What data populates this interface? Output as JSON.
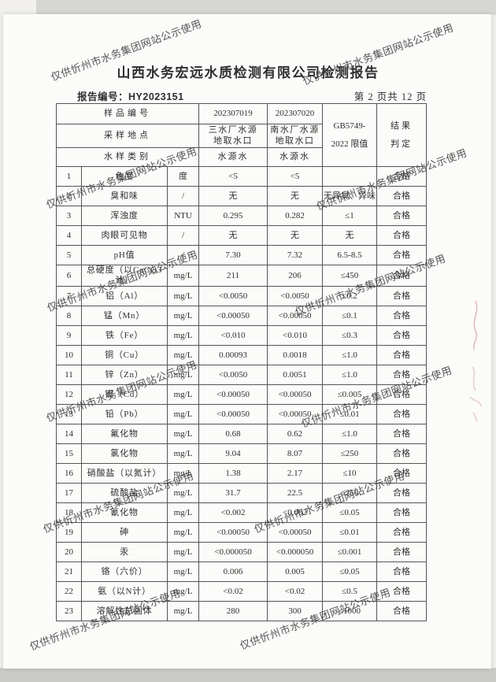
{
  "page": {
    "watermark_text": "仅供忻州市水务集团网站公示使用",
    "title": "山西水务宏远水质检测有限公司检测报告",
    "report_no_label": "报告编号：",
    "report_no": "HY2023151",
    "page_indicator": "第 2 页共 12 页"
  },
  "table": {
    "header": {
      "sample_no_label": "样品编号",
      "sample_no_1": "202307019",
      "sample_no_2": "202307020",
      "location_label": "采样地点",
      "location_1_line1": "三水厂水源",
      "location_1_line2": "地取水口",
      "location_2_line1": "南水厂水源",
      "location_2_line2": "地取水口",
      "category_label": "水样类别",
      "category_1": "水源水",
      "category_2": "水源水",
      "limit_line1": "GB5749-",
      "limit_line2": "2022 限值",
      "result_line1": "结果",
      "result_line2": "判定"
    },
    "rows": [
      {
        "no": "1",
        "name": "色度",
        "unit": "度",
        "v1": "<5",
        "v2": "<5",
        "limit": "",
        "result": "合格"
      },
      {
        "no": "2",
        "name": "臭和味",
        "unit": "/",
        "v1": "无",
        "v2": "无",
        "limit": "无异臭、异味",
        "result": "合格"
      },
      {
        "no": "3",
        "name": "浑浊度",
        "unit": "NTU",
        "v1": "0.295",
        "v2": "0.282",
        "limit": "≤1",
        "result": "合格"
      },
      {
        "no": "4",
        "name": "肉眼可见物",
        "unit": "/",
        "v1": "无",
        "v2": "无",
        "limit": "无",
        "result": "合格"
      },
      {
        "no": "5",
        "name": "pH值",
        "unit": "/",
        "v1": "7.30",
        "v2": "7.32",
        "limit": "6.5-8.5",
        "result": "合格"
      },
      {
        "no": "6",
        "name": "总硬度（以CaCO3计）",
        "unit": "mg/L",
        "v1": "211",
        "v2": "206",
        "limit": "≤450",
        "result": "合格"
      },
      {
        "no": "7",
        "name": "铝（Al）",
        "unit": "mg/L",
        "v1": "<0.0050",
        "v2": "<0.0050",
        "limit": "≤0.2",
        "result": "合格"
      },
      {
        "no": "8",
        "name": "锰（Mn）",
        "unit": "mg/L",
        "v1": "<0.00050",
        "v2": "<0.00050",
        "limit": "≤0.1",
        "result": "合格"
      },
      {
        "no": "9",
        "name": "铁（Fe）",
        "unit": "mg/L",
        "v1": "<0.010",
        "v2": "<0.010",
        "limit": "≤0.3",
        "result": "合格"
      },
      {
        "no": "10",
        "name": "铜（Cu）",
        "unit": "mg/L",
        "v1": "0.00093",
        "v2": "0.0018",
        "limit": "≤1.0",
        "result": "合格"
      },
      {
        "no": "11",
        "name": "锌（Zn）",
        "unit": "mg/L",
        "v1": "<0.0050",
        "v2": "0.0051",
        "limit": "≤1.0",
        "result": "合格"
      },
      {
        "no": "12",
        "name": "镉（Cd）",
        "unit": "mg/L",
        "v1": "<0.00050",
        "v2": "<0.00050",
        "limit": "≤0.005",
        "result": "合格"
      },
      {
        "no": "13",
        "name": "铅（Pb）",
        "unit": "mg/L",
        "v1": "<0.00050",
        "v2": "<0.00050",
        "limit": "≤0.01",
        "result": "合格"
      },
      {
        "no": "14",
        "name": "氟化物",
        "unit": "mg/L",
        "v1": "0.68",
        "v2": "0.62",
        "limit": "≤1.0",
        "result": "合格"
      },
      {
        "no": "15",
        "name": "氯化物",
        "unit": "mg/L",
        "v1": "9.04",
        "v2": "8.07",
        "limit": "≤250",
        "result": "合格"
      },
      {
        "no": "16",
        "name": "硝酸盐（以氮计）",
        "unit": "mg/L",
        "v1": "1.38",
        "v2": "2.17",
        "limit": "≤10",
        "result": "合格"
      },
      {
        "no": "17",
        "name": "硫酸盐",
        "unit": "mg/L",
        "v1": "31.7",
        "v2": "22.5",
        "limit": "≤250",
        "result": "合格"
      },
      {
        "no": "18",
        "name": "氰化物",
        "unit": "mg/L",
        "v1": "<0.002",
        "v2": "<0.002",
        "limit": "≤0.05",
        "result": "合格"
      },
      {
        "no": "19",
        "name": "砷",
        "unit": "mg/L",
        "v1": "<0.00050",
        "v2": "<0.00050",
        "limit": "≤0.01",
        "result": "合格"
      },
      {
        "no": "20",
        "name": "汞",
        "unit": "mg/L",
        "v1": "<0.000050",
        "v2": "<0.000050",
        "limit": "≤0.001",
        "result": "合格"
      },
      {
        "no": "21",
        "name": "铬（六价）",
        "unit": "mg/L",
        "v1": "0.006",
        "v2": "0.005",
        "limit": "≤0.05",
        "result": "合格"
      },
      {
        "no": "22",
        "name": "氨（以N计）",
        "unit": "mg/L",
        "v1": "<0.02",
        "v2": "<0.02",
        "limit": "≤0.5",
        "result": "合格"
      },
      {
        "no": "23",
        "name": "溶解性总固体",
        "unit": "mg/L",
        "v1": "280",
        "v2": "300",
        "limit": "≤1000",
        "result": "合格"
      }
    ]
  },
  "colors": {
    "paper": "#fbfbf9",
    "ink": "#2f2f2f",
    "border": "#555555",
    "watermark": "#3d3d3d",
    "scan_background": "#d5d5d3",
    "red_mark": "#c98b8b"
  }
}
